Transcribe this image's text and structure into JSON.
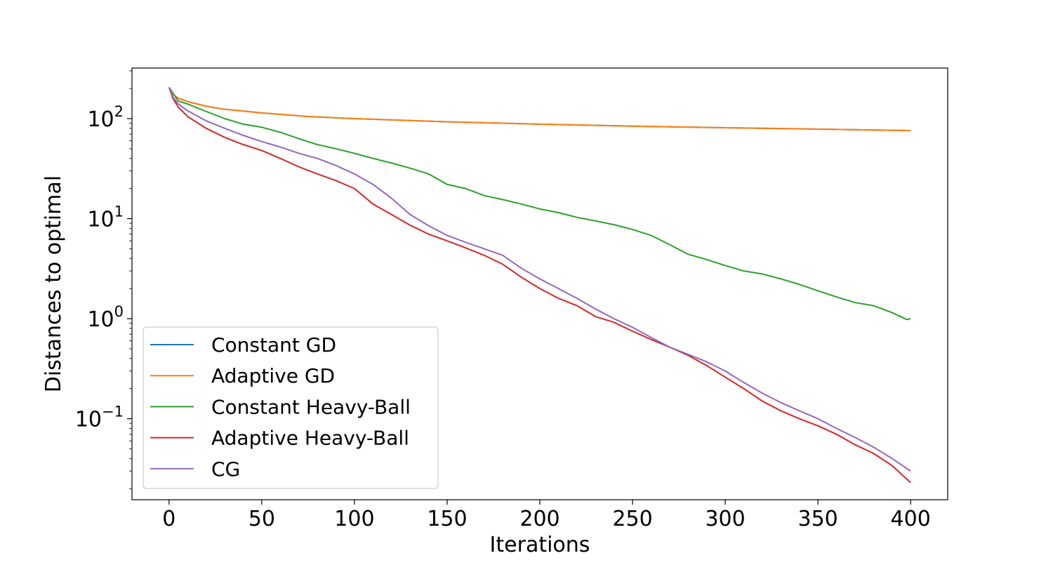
{
  "chart_data": {
    "type": "line",
    "xlabel": "Iterations",
    "ylabel": "Distances to optimal",
    "xlim": [
      -20,
      420
    ],
    "ylim": [
      0.0155,
      320
    ],
    "yscale": "log",
    "grid": false,
    "legend_position": "bottom-left",
    "x_ticks": [
      0,
      50,
      100,
      150,
      200,
      250,
      300,
      350,
      400
    ],
    "x_tick_labels": [
      "0",
      "50",
      "100",
      "150",
      "200",
      "250",
      "300",
      "350",
      "400"
    ],
    "y_ticks": [
      100,
      10,
      1,
      0.1
    ],
    "y_tick_labels": [
      {
        "base": "10",
        "exp": "2"
      },
      {
        "base": "10",
        "exp": "1"
      },
      {
        "base": "10",
        "exp": "0"
      },
      {
        "base": "10",
        "exp": "−1"
      }
    ],
    "series": [
      {
        "name": "Constant GD",
        "color": "#1f77b4",
        "x": [
          0,
          2,
          5,
          10,
          20,
          30,
          50,
          75,
          100,
          150,
          200,
          250,
          300,
          350,
          400
        ],
        "y": [
          205,
          175,
          160,
          148,
          133,
          124,
          114,
          105,
          100,
          93,
          88,
          84,
          81,
          78.5,
          76
        ]
      },
      {
        "name": "Adaptive GD",
        "color": "#ff7f0e",
        "x": [
          0,
          2,
          5,
          10,
          20,
          30,
          50,
          75,
          100,
          150,
          200,
          250,
          300,
          350,
          400
        ],
        "y": [
          205,
          175,
          160,
          148,
          133,
          124,
          114,
          105,
          100,
          93,
          88,
          84,
          81,
          78.5,
          76
        ]
      },
      {
        "name": "Constant Heavy-Ball",
        "color": "#2ca02c",
        "x": [
          0,
          5,
          10,
          20,
          30,
          40,
          50,
          60,
          70,
          80,
          90,
          100,
          110,
          120,
          130,
          140,
          150,
          160,
          170,
          180,
          190,
          200,
          210,
          220,
          230,
          240,
          250,
          260,
          270,
          280,
          290,
          300,
          310,
          320,
          330,
          340,
          350,
          360,
          370,
          380,
          390,
          398,
          400
        ],
        "y": [
          205,
          150,
          140,
          118,
          100,
          88,
          82,
          73,
          63,
          55,
          50,
          45,
          40,
          36,
          32,
          28,
          22,
          20,
          17,
          15.5,
          14,
          12.5,
          11.5,
          10.3,
          9.5,
          8.7,
          7.8,
          6.8,
          5.5,
          4.4,
          3.9,
          3.4,
          3.0,
          2.8,
          2.5,
          2.2,
          1.9,
          1.65,
          1.45,
          1.35,
          1.15,
          0.98,
          1.0
        ]
      },
      {
        "name": "Adaptive Heavy-Ball",
        "color": "#d62728",
        "x": [
          0,
          2,
          5,
          10,
          20,
          30,
          40,
          50,
          60,
          70,
          80,
          90,
          100,
          110,
          120,
          130,
          140,
          150,
          160,
          170,
          180,
          190,
          200,
          210,
          220,
          230,
          240,
          250,
          260,
          270,
          280,
          290,
          300,
          310,
          320,
          330,
          340,
          350,
          360,
          370,
          380,
          390,
          400
        ],
        "y": [
          205,
          160,
          130,
          105,
          80,
          65,
          55,
          48,
          40,
          33,
          28,
          24,
          20,
          14,
          11,
          8.6,
          7,
          6,
          5.1,
          4.3,
          3.5,
          2.6,
          2.0,
          1.6,
          1.35,
          1.05,
          0.92,
          0.75,
          0.62,
          0.52,
          0.43,
          0.34,
          0.26,
          0.2,
          0.15,
          0.12,
          0.1,
          0.085,
          0.07,
          0.055,
          0.045,
          0.034,
          0.023
        ]
      },
      {
        "name": "CG",
        "color": "#9467bd",
        "x": [
          0,
          2,
          5,
          10,
          20,
          30,
          40,
          50,
          60,
          70,
          80,
          90,
          100,
          110,
          120,
          130,
          140,
          150,
          160,
          170,
          180,
          190,
          200,
          210,
          220,
          230,
          240,
          250,
          260,
          270,
          280,
          290,
          300,
          310,
          320,
          330,
          340,
          350,
          360,
          370,
          380,
          390,
          400
        ],
        "y": [
          205,
          165,
          140,
          120,
          95,
          80,
          68,
          59,
          52,
          45,
          40,
          34,
          28,
          22,
          16,
          11,
          8.5,
          6.8,
          5.8,
          5.0,
          4.3,
          3.2,
          2.5,
          2.0,
          1.6,
          1.25,
          1.0,
          0.82,
          0.65,
          0.52,
          0.44,
          0.37,
          0.3,
          0.23,
          0.18,
          0.145,
          0.12,
          0.1,
          0.08,
          0.065,
          0.052,
          0.04,
          0.03
        ]
      }
    ]
  }
}
